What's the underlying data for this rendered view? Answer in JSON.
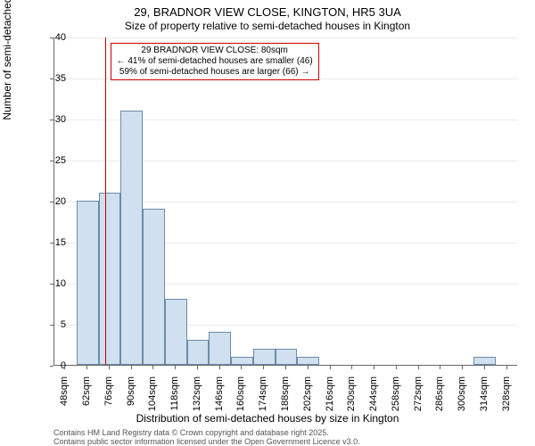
{
  "chart": {
    "type": "histogram",
    "title_main": "29, BRADNOR VIEW CLOSE, KINGTON, HR5 3UA",
    "title_sub": "Size of property relative to semi-detached houses in Kington",
    "title_fontsize_main": 13,
    "title_fontsize_sub": 12,
    "ylabel": "Number of semi-detached properties",
    "xlabel": "Distribution of semi-detached houses by size in Kington",
    "label_fontsize": 12,
    "tick_fontsize": 11,
    "background_color": "#ffffff",
    "grid_color": "#eaeaea",
    "axis_color": "#666666",
    "bar_fill": "#d0e0f0",
    "bar_stroke": "#6b8ca8",
    "vline_color": "#cc0000",
    "annotation_border": "#cc0000",
    "ylim": [
      0,
      40
    ],
    "ytick_step": 5,
    "yticks": [
      0,
      5,
      10,
      15,
      20,
      25,
      30,
      35,
      40
    ],
    "x_labels": [
      "48sqm",
      "62sqm",
      "76sqm",
      "90sqm",
      "104sqm",
      "118sqm",
      "132sqm",
      "146sqm",
      "160sqm",
      "174sqm",
      "188sqm",
      "202sqm",
      "216sqm",
      "230sqm",
      "244sqm",
      "258sqm",
      "272sqm",
      "286sqm",
      "300sqm",
      "314sqm",
      "328sqm"
    ],
    "values": [
      0,
      20,
      21,
      31,
      19,
      8,
      3,
      4,
      1,
      2,
      2,
      1,
      0,
      0,
      0,
      0,
      0,
      0,
      0,
      1,
      0
    ],
    "bar_width": 1.0,
    "vline_x": 80,
    "x_start": 48,
    "x_step": 14,
    "annotation": {
      "line1": "29 BRADNOR VIEW CLOSE: 80sqm",
      "line2": "← 41% of semi-detached houses are smaller (46)",
      "line3": "59% of semi-detached houses are larger (66) →",
      "fontsize": 10
    }
  },
  "footer": {
    "line1": "Contains HM Land Registry data © Crown copyright and database right 2025.",
    "line2": "Contains public sector information licensed under the Open Government Licence v3.0.",
    "fontsize": 9,
    "color": "#555555"
  }
}
